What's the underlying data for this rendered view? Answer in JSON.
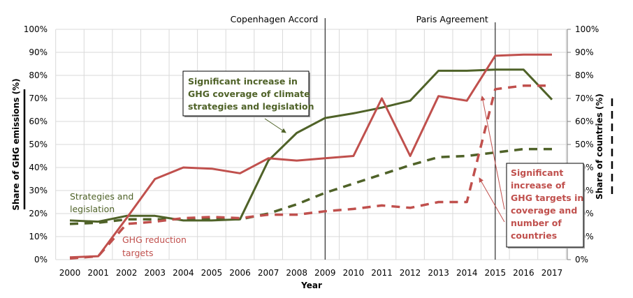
{
  "chart_data": {
    "type": "line",
    "title": "",
    "xlabel": "Year",
    "ylabel": "Share of GHG emissions (%)",
    "ylabel_right": "Share of countries (%)",
    "x": [
      2000,
      2001,
      2002,
      2003,
      2004,
      2005,
      2006,
      2007,
      2008,
      2009,
      2010,
      2011,
      2012,
      2013,
      2014,
      2015,
      2016,
      2017
    ],
    "x_tick_labels": [
      "2000",
      "2001",
      "2002",
      "2003",
      "2004",
      "2005",
      "2006",
      "2007",
      "2008",
      "2009",
      "2010",
      "2011",
      "2012",
      "2013",
      "2014",
      "2015",
      "2016",
      "2017"
    ],
    "y_tick_labels": [
      "0%",
      "10%",
      "20%",
      "30%",
      "40%",
      "50%",
      "60%",
      "70%",
      "80%",
      "90%",
      "100%"
    ],
    "ylim": [
      0,
      100
    ],
    "ylim_right": [
      0,
      100
    ],
    "grid": true,
    "series": [
      {
        "name": "Strategies and legislation (share of GHG emissions)",
        "axis": "left",
        "style": "solid",
        "color": "#4f6228",
        "values": [
          17,
          16.5,
          19,
          19,
          17,
          17,
          17.5,
          43,
          55,
          61.5,
          63.5,
          66,
          69,
          82,
          82,
          82.5,
          82.5,
          69.5
        ]
      },
      {
        "name": "GHG reduction targets (share of GHG emissions)",
        "axis": "left",
        "style": "solid",
        "color": "#c0504d",
        "values": [
          1,
          1.5,
          18,
          35,
          40,
          39.5,
          37.5,
          44,
          43,
          44,
          45,
          70,
          45,
          71,
          69,
          88.5,
          89,
          89
        ]
      },
      {
        "name": "Strategies and legislation (share of countries)",
        "axis": "right",
        "style": "dashed",
        "color": "#4f6228",
        "values": [
          15.5,
          16,
          17.5,
          17.5,
          17.5,
          17.5,
          17.5,
          20,
          24,
          29,
          33,
          37,
          41,
          44.5,
          45,
          46.5,
          48,
          48
        ]
      },
      {
        "name": "GHG reduction targets (share of countries)",
        "axis": "right",
        "style": "dashed",
        "color": "#c0504d",
        "values": [
          0.5,
          1.5,
          15.5,
          16.5,
          18,
          18.5,
          18,
          19.5,
          19.5,
          21,
          22,
          23.5,
          22.5,
          25,
          25,
          74,
          75.5,
          75.5
        ]
      }
    ],
    "events": [
      {
        "label": "Copenhagen Accord",
        "year": 2009
      },
      {
        "label": "Paris Agreement",
        "year": 2015
      }
    ],
    "series_labels": [
      {
        "lines": [
          "Strategies and",
          "legislation"
        ],
        "color": "#4f6228"
      },
      {
        "lines": [
          "GHG reduction",
          "targets"
        ],
        "color": "#c0504d"
      }
    ],
    "annotations": [
      {
        "lines": [
          "Significant increase in",
          "GHG coverage of climate",
          "strategies and legislation"
        ],
        "color": "#4f6228"
      },
      {
        "lines": [
          "Significant",
          "increase of",
          "GHG targets in",
          "coverage and",
          "number of",
          "countries"
        ],
        "color": "#c0504d"
      }
    ],
    "legend": "none"
  }
}
